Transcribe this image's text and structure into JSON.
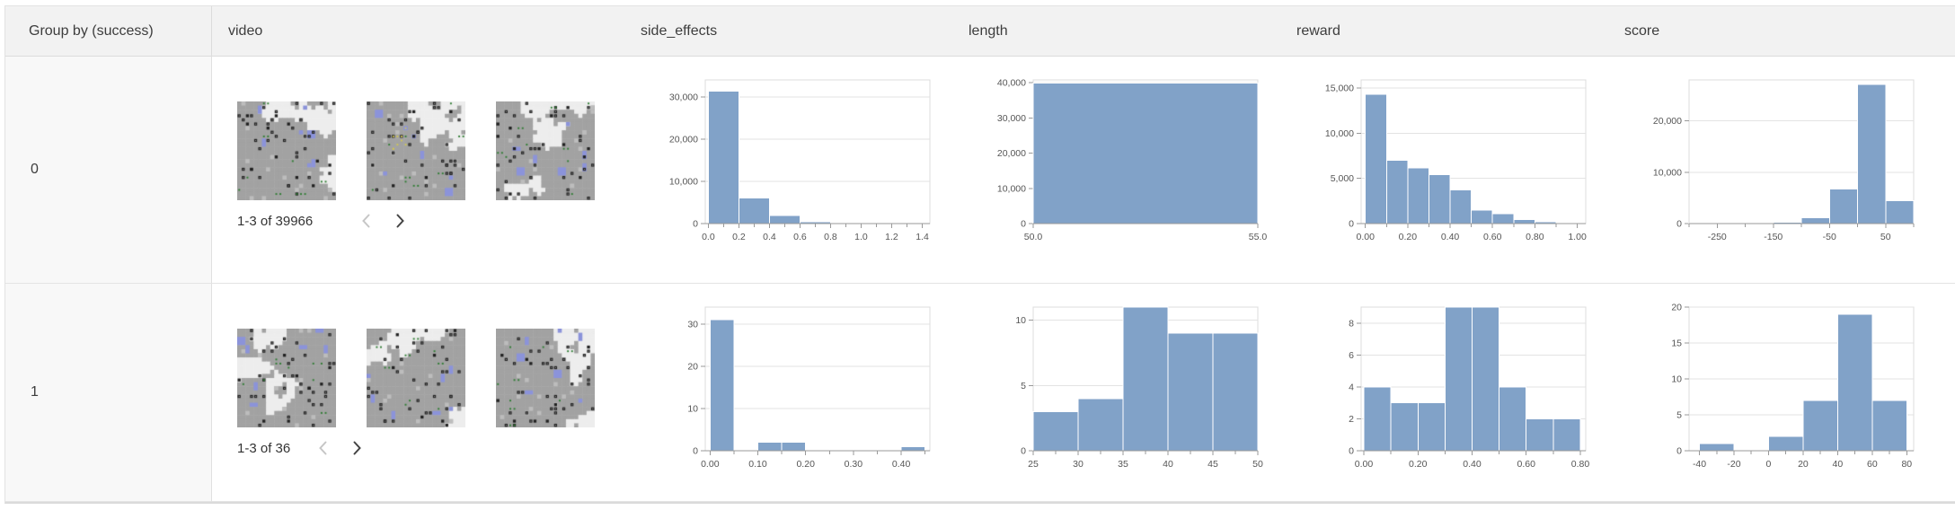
{
  "table": {
    "columns": [
      {
        "key": "group",
        "label": "Group by (success)"
      },
      {
        "key": "video",
        "label": "video"
      },
      {
        "key": "side_effects",
        "label": "side_effects"
      },
      {
        "key": "length",
        "label": "length"
      },
      {
        "key": "reward",
        "label": "reward"
      },
      {
        "key": "score",
        "label": "score"
      }
    ],
    "rows": [
      {
        "group": "0",
        "video": {
          "thumbnail_count": 3,
          "pagination": "1-3 of 39966",
          "prev_icon": "chevron-left-icon",
          "next_icon": "chevron-right-icon"
        }
      },
      {
        "group": "1",
        "video": {
          "thumbnail_count": 3,
          "pagination": "1-3 of 36",
          "prev_icon": "chevron-left-icon",
          "next_icon": "chevron-right-icon"
        }
      }
    ]
  },
  "colors": {
    "bar": "#81a2c8",
    "header_bg": "#f2f2f2",
    "group_column_bg": "#f8f8f8",
    "border": "#e2e2e2",
    "grid_line": "#e3e3e3",
    "axis_line": "#999999",
    "tick_label": "#555555",
    "chevron_disabled": "#c6c6c6",
    "chevron_enabled": "#444444"
  },
  "chart_data": [
    {
      "type": "bar",
      "subtype": "histogram",
      "row_group": "0",
      "column": "side_effects",
      "bin_start": 0.0,
      "bin_width": 0.2,
      "values": [
        31300,
        6100,
        1900,
        450,
        130,
        60,
        26
      ],
      "xlim": [
        -0.02,
        1.45
      ],
      "ylim": [
        0,
        34000
      ],
      "yticks": [
        {
          "v": 0,
          "label": "0"
        },
        {
          "v": 10000,
          "label": "10,000"
        },
        {
          "v": 20000,
          "label": "20,000"
        },
        {
          "v": 30000,
          "label": "30,000"
        }
      ],
      "xticks": [
        {
          "v": 0.0,
          "label": "0.0"
        },
        {
          "v": 0.2,
          "label": "0.2"
        },
        {
          "v": 0.4,
          "label": "0.4"
        },
        {
          "v": 0.6,
          "label": "0.6"
        },
        {
          "v": 0.8,
          "label": "0.8"
        },
        {
          "v": 1.0,
          "label": "1.0"
        },
        {
          "v": 1.2,
          "label": "1.2"
        },
        {
          "v": 1.4,
          "label": "1.4"
        }
      ],
      "minor_step": 0.1,
      "grid": true,
      "legend": "none"
    },
    {
      "type": "bar",
      "subtype": "histogram",
      "row_group": "0",
      "column": "length",
      "bin_start": 50.0,
      "bin_width": 5.0,
      "values": [
        39966
      ],
      "xlim": [
        50.0,
        55.0
      ],
      "ylim": [
        0,
        40800
      ],
      "yticks": [
        {
          "v": 0,
          "label": "0"
        },
        {
          "v": 10000,
          "label": "10,000"
        },
        {
          "v": 20000,
          "label": "20,000"
        },
        {
          "v": 30000,
          "label": "30,000"
        },
        {
          "v": 40000,
          "label": "40,000"
        }
      ],
      "xticks": [
        {
          "v": 50.0,
          "label": "50.0"
        },
        {
          "v": 55.0,
          "label": "55.0"
        }
      ],
      "minor_step": null,
      "grid": true,
      "legend": "none"
    },
    {
      "type": "bar",
      "subtype": "histogram",
      "row_group": "0",
      "column": "reward",
      "bin_start": 0.0,
      "bin_width": 0.1,
      "values": [
        14300,
        7000,
        6150,
        5400,
        3750,
        1500,
        1100,
        466,
        200,
        100
      ],
      "xlim": [
        -0.02,
        1.04
      ],
      "ylim": [
        0,
        15900
      ],
      "yticks": [
        {
          "v": 0,
          "label": "0"
        },
        {
          "v": 5000,
          "label": "5,000"
        },
        {
          "v": 10000,
          "label": "10,000"
        },
        {
          "v": 15000,
          "label": "15,000"
        }
      ],
      "xticks": [
        {
          "v": 0.0,
          "label": "0.00"
        },
        {
          "v": 0.2,
          "label": "0.20"
        },
        {
          "v": 0.4,
          "label": "0.40"
        },
        {
          "v": 0.6,
          "label": "0.60"
        },
        {
          "v": 0.8,
          "label": "0.80"
        },
        {
          "v": 1.0,
          "label": "1.00"
        }
      ],
      "minor_step": 0.1,
      "grid": true,
      "legend": "none"
    },
    {
      "type": "bar",
      "subtype": "histogram",
      "row_group": "0",
      "column": "score",
      "bin_start": -300,
      "bin_width": 50,
      "values": [
        66,
        100,
        150,
        250,
        1100,
        6700,
        27100,
        4500
      ],
      "xlim": [
        -300,
        100
      ],
      "ylim": [
        0,
        28000
      ],
      "yticks": [
        {
          "v": 0,
          "label": "0"
        },
        {
          "v": 10000,
          "label": "10,000"
        },
        {
          "v": 20000,
          "label": "20,000"
        }
      ],
      "xticks": [
        {
          "v": -250,
          "label": "-250"
        },
        {
          "v": -150,
          "label": "-150"
        },
        {
          "v": -50,
          "label": "-50"
        },
        {
          "v": 50,
          "label": "50"
        }
      ],
      "minor_step": 50,
      "grid": true,
      "legend": "none"
    },
    {
      "type": "bar",
      "subtype": "histogram",
      "row_group": "1",
      "column": "side_effects",
      "bin_start": 0.0,
      "bin_width": 0.05,
      "values": [
        31,
        0,
        2,
        2,
        0,
        0,
        0,
        0,
        1
      ],
      "xlim": [
        -0.01,
        0.46
      ],
      "ylim": [
        0,
        34
      ],
      "yticks": [
        {
          "v": 0,
          "label": "0"
        },
        {
          "v": 10,
          "label": "10"
        },
        {
          "v": 20,
          "label": "20"
        },
        {
          "v": 30,
          "label": "30"
        }
      ],
      "xticks": [
        {
          "v": 0.0,
          "label": "0.00"
        },
        {
          "v": 0.1,
          "label": "0.10"
        },
        {
          "v": 0.2,
          "label": "0.20"
        },
        {
          "v": 0.3,
          "label": "0.30"
        },
        {
          "v": 0.4,
          "label": "0.40"
        }
      ],
      "minor_step": 0.05,
      "grid": true,
      "legend": "none"
    },
    {
      "type": "bar",
      "subtype": "histogram",
      "row_group": "1",
      "column": "length",
      "bin_start": 25,
      "bin_width": 5,
      "values": [
        3,
        4,
        11,
        9,
        9
      ],
      "xlim": [
        25,
        50
      ],
      "ylim": [
        0,
        11
      ],
      "yticks": [
        {
          "v": 0,
          "label": "0"
        },
        {
          "v": 5,
          "label": "5"
        },
        {
          "v": 10,
          "label": "10"
        }
      ],
      "xticks": [
        {
          "v": 25,
          "label": "25"
        },
        {
          "v": 30,
          "label": "30"
        },
        {
          "v": 35,
          "label": "35"
        },
        {
          "v": 40,
          "label": "40"
        },
        {
          "v": 45,
          "label": "45"
        },
        {
          "v": 50,
          "label": "50"
        }
      ],
      "minor_step": 2.5,
      "grid": true,
      "legend": "none"
    },
    {
      "type": "bar",
      "subtype": "histogram",
      "row_group": "1",
      "column": "reward",
      "bin_start": 0.0,
      "bin_width": 0.1,
      "values": [
        4,
        3,
        3,
        9,
        9,
        4,
        2,
        2
      ],
      "xlim": [
        -0.01,
        0.82
      ],
      "ylim": [
        0,
        9
      ],
      "yticks": [
        {
          "v": 0,
          "label": "0"
        },
        {
          "v": 2,
          "label": "2"
        },
        {
          "v": 4,
          "label": "4"
        },
        {
          "v": 6,
          "label": "6"
        },
        {
          "v": 8,
          "label": "8"
        }
      ],
      "xticks": [
        {
          "v": 0.0,
          "label": "0.00"
        },
        {
          "v": 0.2,
          "label": "0.20"
        },
        {
          "v": 0.4,
          "label": "0.40"
        },
        {
          "v": 0.6,
          "label": "0.60"
        },
        {
          "v": 0.8,
          "label": "0.80"
        }
      ],
      "minor_step": 0.1,
      "grid": true,
      "legend": "none"
    },
    {
      "type": "bar",
      "subtype": "histogram",
      "row_group": "1",
      "column": "score",
      "bin_start": -40,
      "bin_width": 20,
      "values": [
        1,
        0,
        2,
        7,
        19,
        7
      ],
      "xlim": [
        -46,
        84
      ],
      "ylim": [
        0,
        20
      ],
      "yticks": [
        {
          "v": 0,
          "label": "0"
        },
        {
          "v": 5,
          "label": "5"
        },
        {
          "v": 10,
          "label": "10"
        },
        {
          "v": 15,
          "label": "15"
        },
        {
          "v": 20,
          "label": "20"
        }
      ],
      "xticks": [
        {
          "v": -40,
          "label": "-40"
        },
        {
          "v": -20,
          "label": "-20"
        },
        {
          "v": 0,
          "label": "0"
        },
        {
          "v": 20,
          "label": "20"
        },
        {
          "v": 40,
          "label": "40"
        },
        {
          "v": 60,
          "label": "60"
        },
        {
          "v": 80,
          "label": "80"
        }
      ],
      "minor_step": 10,
      "grid": true,
      "legend": "none"
    }
  ]
}
